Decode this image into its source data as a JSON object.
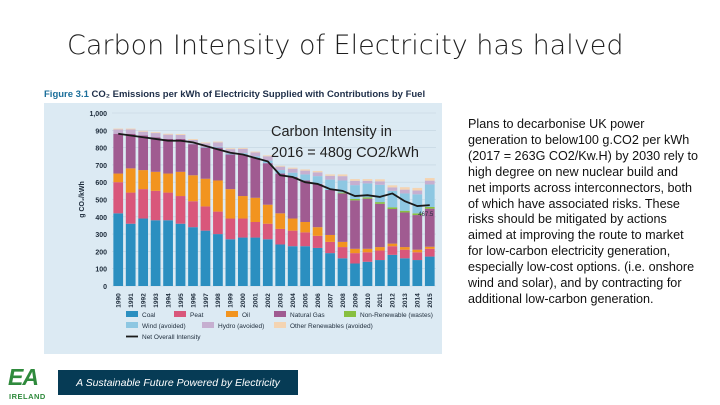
{
  "slide": {
    "title": "Carbon Intensity of Electricity has halved",
    "figure_number": "Figure 3.1",
    "figure_caption": "CO₂ Emissions per kWh of Electricity Supplied with Contributions by Fuel",
    "overlay_note_line1": "Carbon Intensity in",
    "overlay_note_line2": "2016 = 480g CO2/kWh",
    "side_text": "Plans to decarbonise UK power generation to below100 g.CO2 per kWh (2017 = 263G CO2/Kw.H) by 2030 rely to high degree on new nuclear build and net imports across interconnectors, both of which have associated risks. These risks should be mitigated by actions aimed at improving the route to market for low-carbon electricity generation, especially low-cost options. (i.e. onshore wind and solar), and by contracting for additional low-carbon generation.",
    "logo_text": "EA",
    "logo_subtext": "IRELAND",
    "footer_text": "A Sustainable Future Powered by Electricity"
  },
  "colors": {
    "coal": "#2b8fc0",
    "peat": "#d9577b",
    "oil": "#f2941f",
    "natural_gas": "#a05b91",
    "non_renewable_wastes": "#88bf40",
    "wind_avoided": "#8dc7e2",
    "hydro_avoided": "#c6afd0",
    "other_renewables_avoided": "#f4d4b2",
    "net_line": "#1a1a1a",
    "panel": "#dceaf3",
    "footer": "#063b55"
  },
  "chart_data": {
    "type": "bar",
    "stacked": true,
    "title": "CO₂ Emissions per kWh of Electricity Supplied with Contributions by Fuel",
    "ylabel": "g CO₂/kWh",
    "ylim": [
      0,
      1000
    ],
    "yticks": [
      0,
      100,
      200,
      300,
      400,
      500,
      600,
      700,
      800,
      900,
      1000
    ],
    "ytick_labels": [
      "0",
      "100",
      "200",
      "300",
      "400",
      "500",
      "600",
      "700",
      "800",
      "900",
      "1,000"
    ],
    "categories": [
      "1990",
      "1991",
      "1992",
      "1993",
      "1994",
      "1995",
      "1996",
      "1997",
      "1998",
      "1999",
      "2000",
      "2001",
      "2002",
      "2003",
      "2004",
      "2005",
      "2006",
      "2007",
      "2008",
      "2009",
      "2010",
      "2011",
      "2012",
      "2013",
      "2014",
      "2015"
    ],
    "series": [
      {
        "name": "Coal",
        "values": [
          420,
          360,
          390,
          380,
          380,
          360,
          340,
          320,
          300,
          270,
          280,
          280,
          270,
          240,
          230,
          230,
          220,
          190,
          160,
          130,
          140,
          150,
          180,
          160,
          150,
          170
        ]
      },
      {
        "name": "Peat",
        "values": [
          180,
          180,
          170,
          170,
          160,
          160,
          150,
          140,
          130,
          120,
          110,
          90,
          90,
          90,
          90,
          80,
          70,
          65,
          65,
          60,
          55,
          55,
          50,
          50,
          45,
          45
        ]
      },
      {
        "name": "Oil",
        "values": [
          50,
          140,
          110,
          110,
          110,
          140,
          150,
          160,
          180,
          170,
          130,
          140,
          110,
          90,
          70,
          60,
          50,
          40,
          30,
          25,
          20,
          20,
          15,
          15,
          15,
          12
        ]
      },
      {
        "name": "Natural Gas",
        "values": [
          230,
          200,
          200,
          200,
          200,
          190,
          180,
          180,
          190,
          200,
          240,
          230,
          240,
          230,
          240,
          240,
          250,
          260,
          280,
          280,
          290,
          250,
          200,
          200,
          200,
          220
        ]
      },
      {
        "name": "Non-Renewable (wastes)",
        "values": [
          0,
          0,
          0,
          0,
          0,
          0,
          0,
          0,
          0,
          0,
          0,
          0,
          0,
          0,
          0,
          0,
          0,
          0,
          5,
          8,
          8,
          10,
          10,
          10,
          10,
          10
        ]
      },
      {
        "name": "Wind (avoided)",
        "values": [
          0,
          0,
          0,
          0,
          0,
          0,
          2,
          3,
          5,
          6,
          8,
          10,
          15,
          20,
          25,
          35,
          45,
          60,
          70,
          80,
          80,
          100,
          95,
          100,
          110,
          130
        ]
      },
      {
        "name": "Hydro (avoided)",
        "values": [
          25,
          25,
          22,
          24,
          25,
          23,
          22,
          22,
          25,
          25,
          25,
          22,
          25,
          20,
          23,
          22,
          22,
          22,
          25,
          25,
          15,
          20,
          20,
          22,
          22,
          22
        ]
      },
      {
        "name": "Other Renewables (avoided)",
        "values": [
          5,
          5,
          5,
          5,
          5,
          5,
          5,
          5,
          5,
          5,
          5,
          5,
          5,
          5,
          6,
          7,
          8,
          8,
          10,
          10,
          10,
          12,
          12,
          14,
          15,
          15
        ]
      }
    ],
    "line": {
      "name": "Net Overall Intensity",
      "values": [
        880,
        870,
        860,
        850,
        840,
        840,
        830,
        810,
        790,
        770,
        760,
        740,
        720,
        640,
        630,
        600,
        590,
        560,
        550,
        520,
        525,
        515,
        535,
        490,
        462,
        467.5
      ],
      "last_label": "467.5"
    },
    "legend": [
      "Coal",
      "Peat",
      "Oil",
      "Natural Gas",
      "Non-Renewable (wastes)",
      "Wind (avoided)",
      "Hydro (avoided)",
      "Other Renewables (avoided)",
      "Net Overall Intensity"
    ],
    "legend_placement": "bottom"
  }
}
